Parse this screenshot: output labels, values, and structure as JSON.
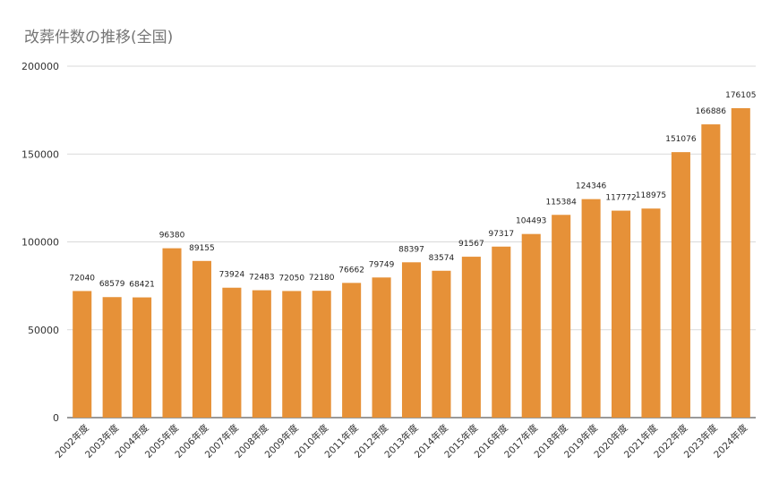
{
  "chart_data": {
    "type": "bar",
    "title": "改葬件数の推移(全国)",
    "categories": [
      "2002年度",
      "2003年度",
      "2004年度",
      "2005年度",
      "2006年度",
      "2007年度",
      "2008年度",
      "2009年度",
      "2010年度",
      "2011年度",
      "2012年度",
      "2013年度",
      "2014年度",
      "2015年度",
      "2016年度",
      "2017年度",
      "2018年度",
      "2019年度",
      "2020年度",
      "2021年度",
      "2022年度",
      "2023年度",
      "2024年度"
    ],
    "values": [
      72040,
      68579,
      68421,
      96380,
      89155,
      73924,
      72483,
      72050,
      72180,
      76662,
      79749,
      88397,
      83574,
      91567,
      97317,
      104493,
      115384,
      124346,
      117772,
      118975,
      151076,
      166886,
      176105
    ],
    "ylim": [
      0,
      200000
    ],
    "yticks": [
      0,
      50000,
      100000,
      150000,
      200000
    ],
    "grid": true,
    "bar_color": "#E69138",
    "xlabel": "",
    "ylabel": ""
  }
}
